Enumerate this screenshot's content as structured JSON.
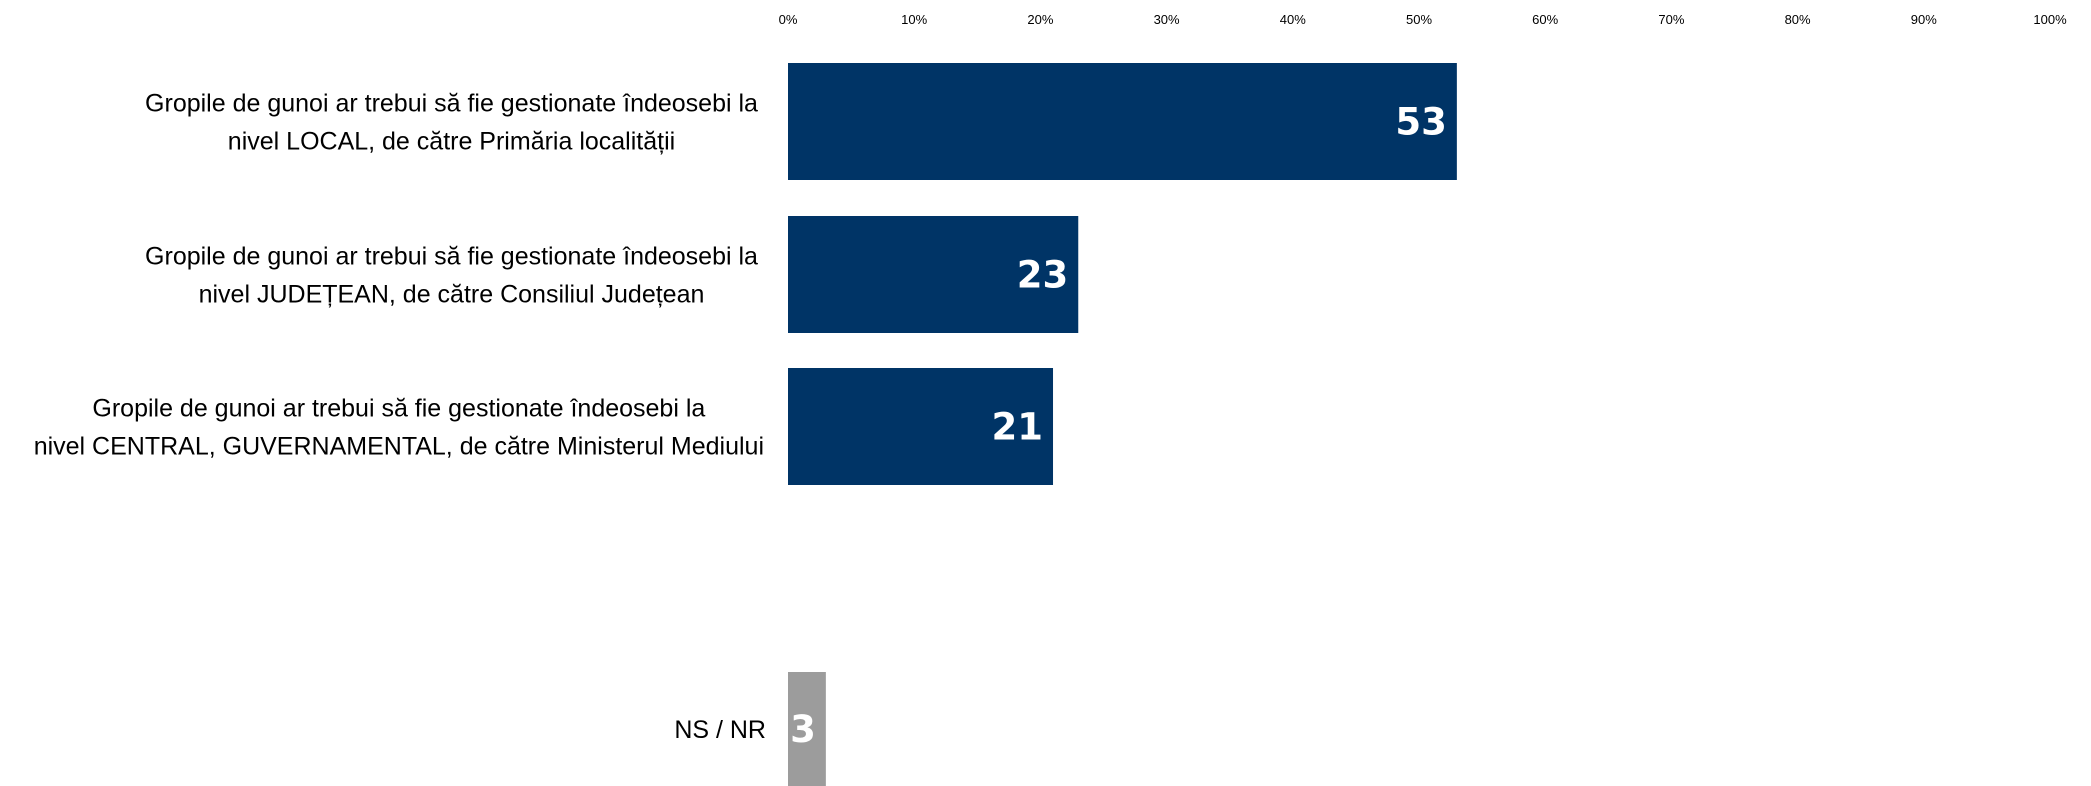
{
  "chart_data": {
    "type": "bar",
    "orientation": "horizontal",
    "xlim": [
      0,
      100
    ],
    "x_ticks": [
      "0%",
      "10%",
      "20%",
      "30%",
      "40%",
      "50%",
      "60%",
      "70%",
      "80%",
      "90%",
      "100%"
    ],
    "grid": false,
    "legend": "none",
    "title": "",
    "xlabel": "",
    "ylabel": "",
    "bars": [
      {
        "label_lines": [
          "Gropile de gunoi ar trebui să fie gestionate îndeosebi la",
          "nivel LOCAL, de către Primăria localității"
        ],
        "value": 53,
        "value_label": "53",
        "color": "#003466"
      },
      {
        "label_lines": [
          "Gropile de gunoi ar trebui să fie gestionate îndeosebi la",
          "nivel JUDEȚEAN, de către Consiliul Județean"
        ],
        "value": 23,
        "value_label": "23",
        "color": "#003466"
      },
      {
        "label_lines": [
          "Gropile de gunoi ar trebui să fie gestionate îndeosebi la",
          "nivel CENTRAL, GUVERNAMENTAL, de către Ministerul Mediului"
        ],
        "value": 21,
        "value_label": "21",
        "color": "#003466"
      },
      {
        "label_lines": [
          "NS / NR"
        ],
        "value": 3,
        "value_label": "3",
        "color": "#9c9c9c"
      }
    ]
  }
}
